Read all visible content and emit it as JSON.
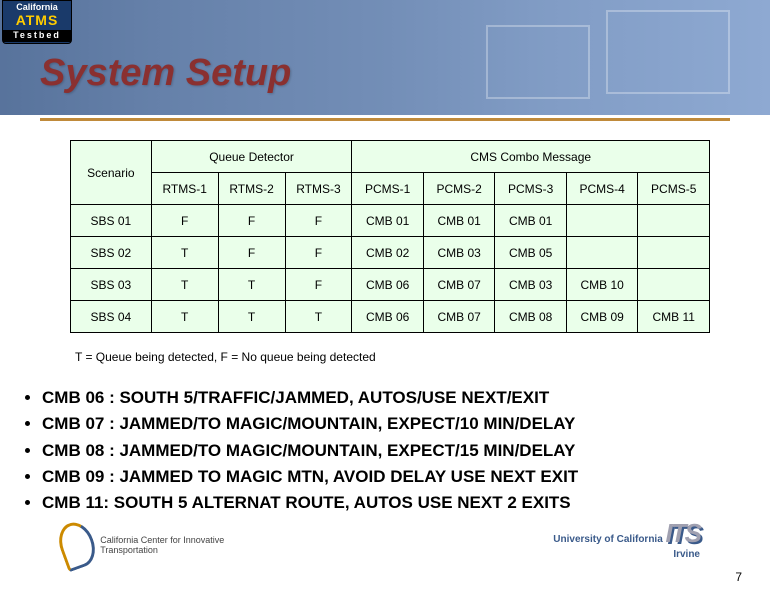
{
  "logo": {
    "line1": "California",
    "line2": "ATMS",
    "line3": "Testbed"
  },
  "title": "System Setup",
  "table": {
    "scenario_header": "Scenario",
    "group1": "Queue Detector",
    "group2": "CMS Combo Message",
    "cols_rtms": [
      "RTMS-1",
      "RTMS-2",
      "RTMS-3"
    ],
    "cols_pcms": [
      "PCMS-1",
      "PCMS-2",
      "PCMS-3",
      "PCMS-4",
      "PCMS-5"
    ],
    "rows": [
      {
        "s": "SBS 01",
        "r": [
          "F",
          "F",
          "F"
        ],
        "p": [
          "CMB 01",
          "CMB 01",
          "CMB 01",
          "",
          ""
        ]
      },
      {
        "s": "SBS 02",
        "r": [
          "T",
          "F",
          "F"
        ],
        "p": [
          "CMB 02",
          "CMB 03",
          "CMB 05",
          "",
          ""
        ]
      },
      {
        "s": "SBS 03",
        "r": [
          "T",
          "T",
          "F"
        ],
        "p": [
          "CMB 06",
          "CMB 07",
          "CMB 03",
          "CMB 10",
          ""
        ]
      },
      {
        "s": "SBS 04",
        "r": [
          "T",
          "T",
          "T"
        ],
        "p": [
          "CMB 06",
          "CMB 07",
          "CMB 08",
          "CMB 09",
          "CMB 11"
        ]
      }
    ]
  },
  "legend": "T = Queue being detected, F = No queue being detected",
  "bullets": [
    "CMB 06 : SOUTH 5/TRAFFIC/JAMMED,  AUTOS/USE NEXT/EXIT",
    "CMB 07 : JAMMED/TO MAGIC/MOUNTAIN, EXPECT/10 MIN/DELAY",
    "CMB 08 : JAMMED/TO MAGIC/MOUNTAIN, EXPECT/15 MIN/DELAY",
    "CMB 09 : JAMMED TO MAGIC MTN, AVOID DELAY USE NEXT EXIT",
    "CMB 11: SOUTH 5 ALTERNAT ROUTE, AUTOS USE NEXT 2 EXITS"
  ],
  "footer_left": "California Center for Innovative Transportation",
  "footer_right_uni": "University of California",
  "footer_right_city": "Irvine",
  "footer_right_its": "ITS",
  "page_number": "7",
  "colors": {
    "title": "#8a3030",
    "rule": "#c08a3a",
    "cell_bg": "#eaffea",
    "header_grad_from": "#3a5a8a",
    "header_grad_to": "#7a9aca"
  }
}
